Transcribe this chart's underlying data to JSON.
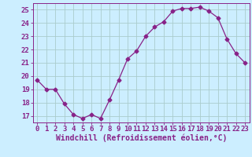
{
  "x": [
    0,
    1,
    2,
    3,
    4,
    5,
    6,
    7,
    8,
    9,
    10,
    11,
    12,
    13,
    14,
    15,
    16,
    17,
    18,
    19,
    20,
    21,
    22,
    23
  ],
  "y": [
    19.7,
    19.0,
    19.0,
    17.9,
    17.1,
    16.8,
    17.1,
    16.8,
    18.2,
    19.7,
    21.3,
    21.9,
    23.0,
    23.7,
    24.1,
    24.9,
    25.1,
    25.1,
    25.2,
    24.9,
    24.4,
    22.8,
    21.7,
    21.0
  ],
  "line_color": "#882288",
  "marker": "D",
  "markersize": 2.5,
  "bg_color": "#cceeff",
  "grid_color": "#aacccc",
  "xlabel": "Windchill (Refroidissement éolien,°C)",
  "xlim": [
    -0.5,
    23.5
  ],
  "ylim": [
    16.5,
    25.5
  ],
  "yticks": [
    17,
    18,
    19,
    20,
    21,
    22,
    23,
    24,
    25
  ],
  "xticks": [
    0,
    1,
    2,
    3,
    4,
    5,
    6,
    7,
    8,
    9,
    10,
    11,
    12,
    13,
    14,
    15,
    16,
    17,
    18,
    19,
    20,
    21,
    22,
    23
  ],
  "tick_color": "#882288",
  "label_color": "#882288",
  "axis_color": "#882288",
  "fontsize_xlabel": 7,
  "fontsize_ticks": 6.5
}
